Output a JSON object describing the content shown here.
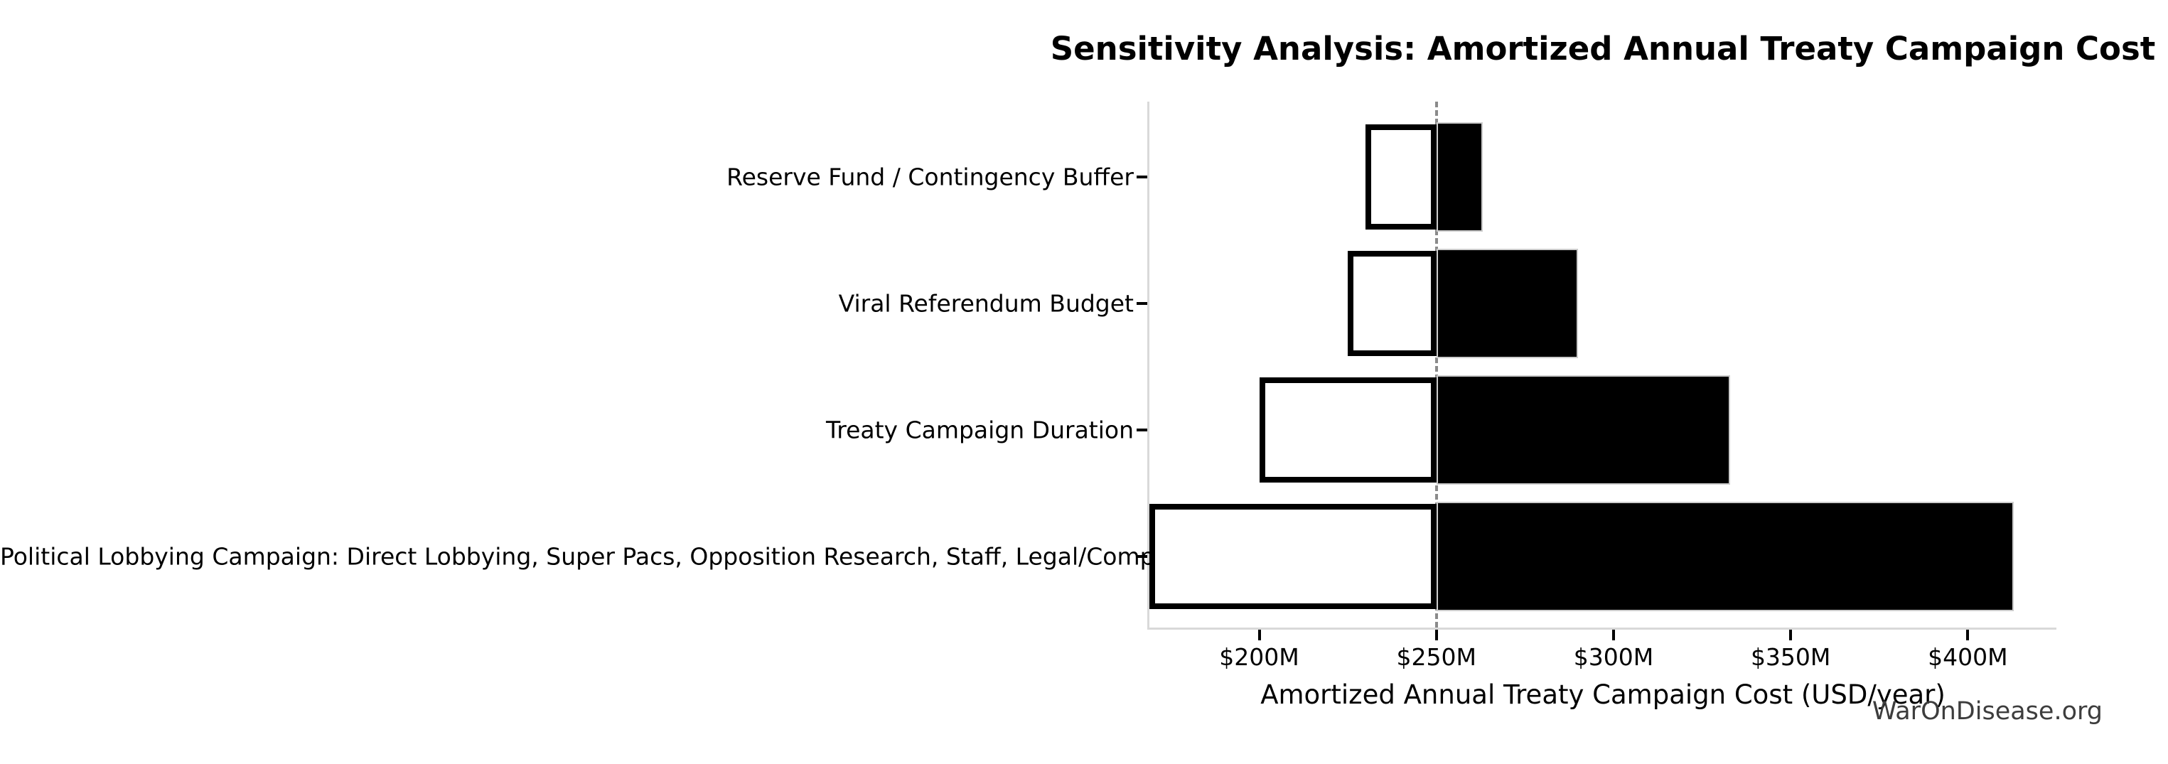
{
  "title": "Sensitivity Analysis: Amortized Annual Treaty Campaign Cost",
  "watermark": "WarOnDisease.org",
  "chart_data": {
    "type": "bar",
    "subtype": "tornado-sensitivity",
    "orientation": "horizontal",
    "title": "Sensitivity Analysis: Amortized Annual Treaty Campaign Cost",
    "xlabel": "Amortized Annual Treaty Campaign Cost (USD/year)",
    "unit": "USD millions per year",
    "baseline": 250,
    "xlim": [
      169,
      425
    ],
    "grid": false,
    "legend": "none",
    "x_ticks": [
      {
        "value": 200,
        "label": "$200M"
      },
      {
        "value": 250,
        "label": "$250M"
      },
      {
        "value": 300,
        "label": "$300M"
      },
      {
        "value": 350,
        "label": "$350M"
      },
      {
        "value": 400,
        "label": "$400M"
      }
    ],
    "categories": [
      "Reserve Fund / Contingency Buffer",
      "Viral Referendum Budget",
      "Treaty Campaign Duration",
      "Political Lobbying Campaign: Direct Lobbying, Super Pacs, Opposition Research, Staff, Legal/Compliance"
    ],
    "series": [
      {
        "name": "low",
        "values": [
          230,
          225,
          200,
          169
        ]
      },
      {
        "name": "high",
        "values": [
          263,
          290,
          333,
          413
        ]
      }
    ],
    "baseline_line": {
      "style": "dashed",
      "color": "#8a8a8a"
    },
    "colors": {
      "low_fill": "#ffffff",
      "low_border": "#000000",
      "high_fill": "#000000",
      "high_border": "#cccccc",
      "spine": "#d9d9d9",
      "tick": "#000000",
      "watermark": "#3d3d3d"
    }
  }
}
